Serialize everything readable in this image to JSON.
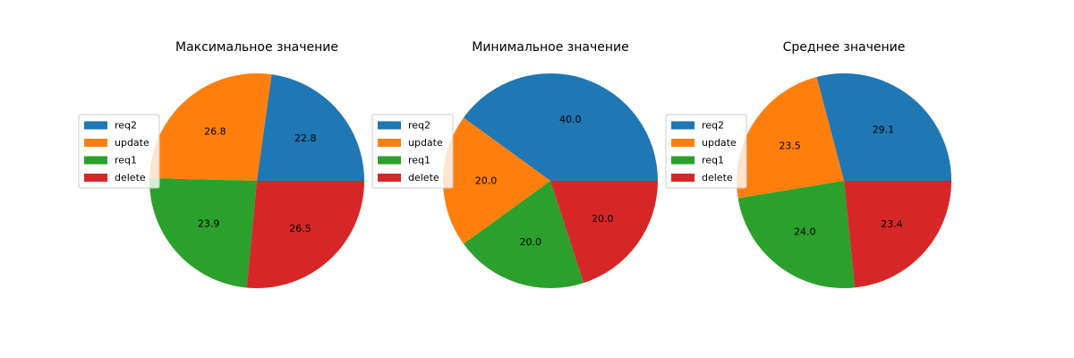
{
  "colors": {
    "req2": "#1f77b4",
    "update": "#ff7f0e",
    "req1": "#2ca02c",
    "delete": "#d62728"
  },
  "chart_data": [
    {
      "type": "pie",
      "title": "Максимальное значение",
      "labels": [
        "req2",
        "update",
        "req1",
        "delete"
      ],
      "values": [
        22.8,
        26.8,
        23.9,
        26.5
      ],
      "value_format": "%1.1f",
      "start_angle": 0,
      "direction": "counterclockwise",
      "legend": "left"
    },
    {
      "type": "pie",
      "title": "Минимальное значение",
      "labels": [
        "req2",
        "update",
        "req1",
        "delete"
      ],
      "values": [
        40.0,
        20.0,
        20.0,
        20.0
      ],
      "value_format": "%1.1f",
      "start_angle": 0,
      "direction": "counterclockwise",
      "legend": "left"
    },
    {
      "type": "pie",
      "title": "Среднее значение",
      "labels": [
        "req2",
        "update",
        "req1",
        "delete"
      ],
      "values": [
        29.1,
        23.5,
        24.0,
        23.4
      ],
      "value_format": "%1.1f",
      "start_angle": 0,
      "direction": "counterclockwise",
      "legend": "left"
    }
  ]
}
